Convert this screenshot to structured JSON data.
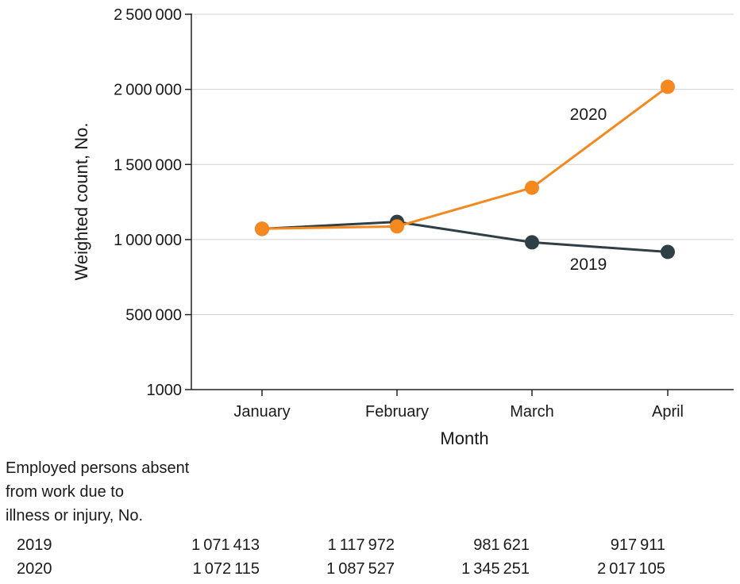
{
  "chart_data": {
    "type": "line",
    "title": "",
    "xlabel": "Month",
    "ylabel": "Weighted count, No.",
    "categories": [
      "January",
      "February",
      "March",
      "April"
    ],
    "yticks": [
      1000,
      500000,
      1000000,
      1500000,
      2000000,
      2500000
    ],
    "ytick_labels": [
      "1000",
      "500 000",
      "1 000 000",
      "1 500 000",
      "2 000 000",
      "2 500 000"
    ],
    "ylim": [
      1000,
      2500000
    ],
    "grid": "horizontal",
    "legend": "none",
    "series": [
      {
        "name": "2019",
        "values": [
          1071413,
          1117972,
          981621,
          917911
        ],
        "color": "#2e3f45"
      },
      {
        "name": "2020",
        "values": [
          1072115,
          1087527,
          1345251,
          2017105
        ],
        "color": "#f5891f"
      }
    ]
  },
  "table": {
    "heading_lines": [
      "Employed persons absent",
      "from work due to",
      "illness or injury, No."
    ],
    "rows": [
      {
        "name": "2019",
        "values": [
          "1 071 413",
          "1 117 972",
          "981 621",
          "917 911"
        ]
      },
      {
        "name": "2020",
        "values": [
          "1 072 115",
          "1 087 527",
          "1 345 251",
          "2 017 105"
        ]
      }
    ]
  },
  "colors": {
    "grid": "#d0d0d0",
    "axis": "#222222",
    "series_2019": "#2e3f45",
    "series_2020": "#f5891f"
  }
}
